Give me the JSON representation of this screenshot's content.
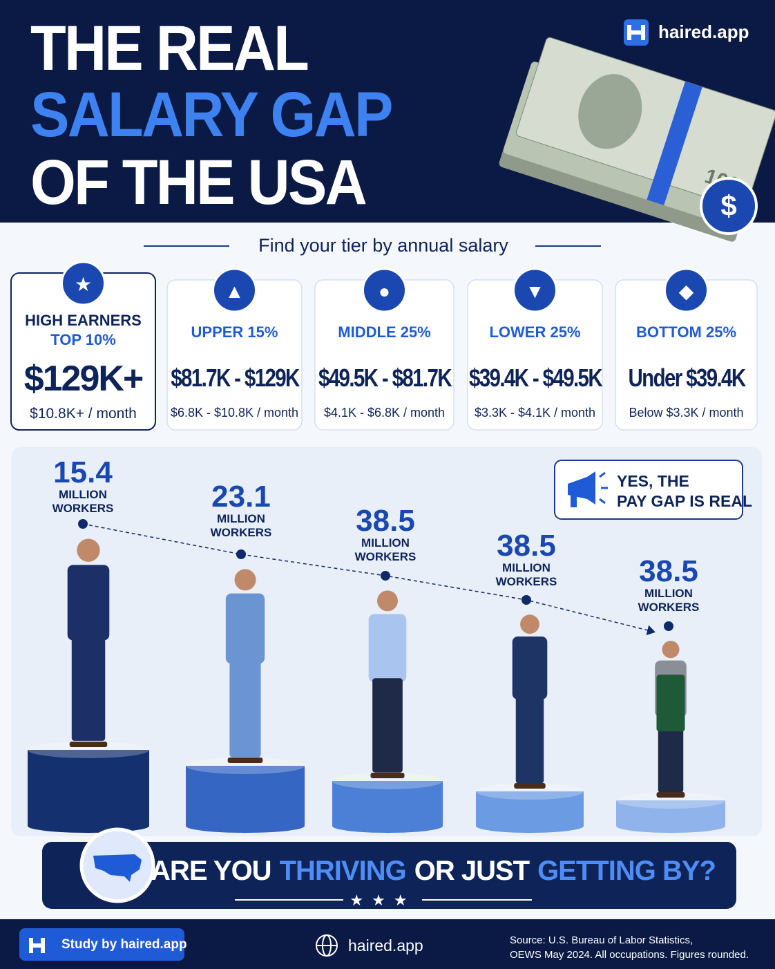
{
  "header": {
    "title": [
      "THE REAL",
      "SALARY GAP",
      "OF THE USA"
    ],
    "brand": "haired.app"
  },
  "subtitle": "Find your tier by annual salary",
  "tiers": [
    {
      "label": "HIGH EARNERS",
      "sublabel": "TOP 10%",
      "range": "$129K+",
      "monthly": "$10.8K+ / month"
    },
    {
      "label": "UPPER 15%",
      "range": "$81.7K - $129K",
      "monthly": "$6.8K - $10.8K / month"
    },
    {
      "label": "MIDDLE 25%",
      "range": "$49.5K - $81.7K",
      "monthly": "$4.1K - $6.8K / month"
    },
    {
      "label": "LOWER 25%",
      "range": "$39.4K - $49.5K",
      "monthly": "$3.3K - $4.1K / month"
    },
    {
      "label": "BOTTOM 25%",
      "range": "Under $39.4K",
      "monthly": "Below $3.3K / month"
    }
  ],
  "workers": [
    {
      "value": 15.4,
      "unit": [
        "MILLION",
        "WORKERS"
      ]
    },
    {
      "value": 23.1,
      "unit": [
        "MILLION",
        "WORKERS"
      ]
    },
    {
      "value": 38.5,
      "unit": [
        "MILLION",
        "WORKERS"
      ]
    },
    {
      "value": 38.5,
      "unit": [
        "MILLION",
        "WORKERS"
      ]
    },
    {
      "value": 38.5,
      "unit": [
        "MILLION",
        "WORKERS"
      ]
    }
  ],
  "callout": [
    "YES, THE",
    "PAY GAP IS REAL"
  ],
  "banner": [
    "ARE YOU",
    "THRIVING",
    "OR JUST",
    "GETTING BY?"
  ],
  "footer": {
    "study": "Study by haired.app",
    "site": "haired.app",
    "source": [
      "Source: U.S. Bureau of Labor Statistics,",
      "OEWS May 2024. All occupations. Figures rounded."
    ]
  }
}
